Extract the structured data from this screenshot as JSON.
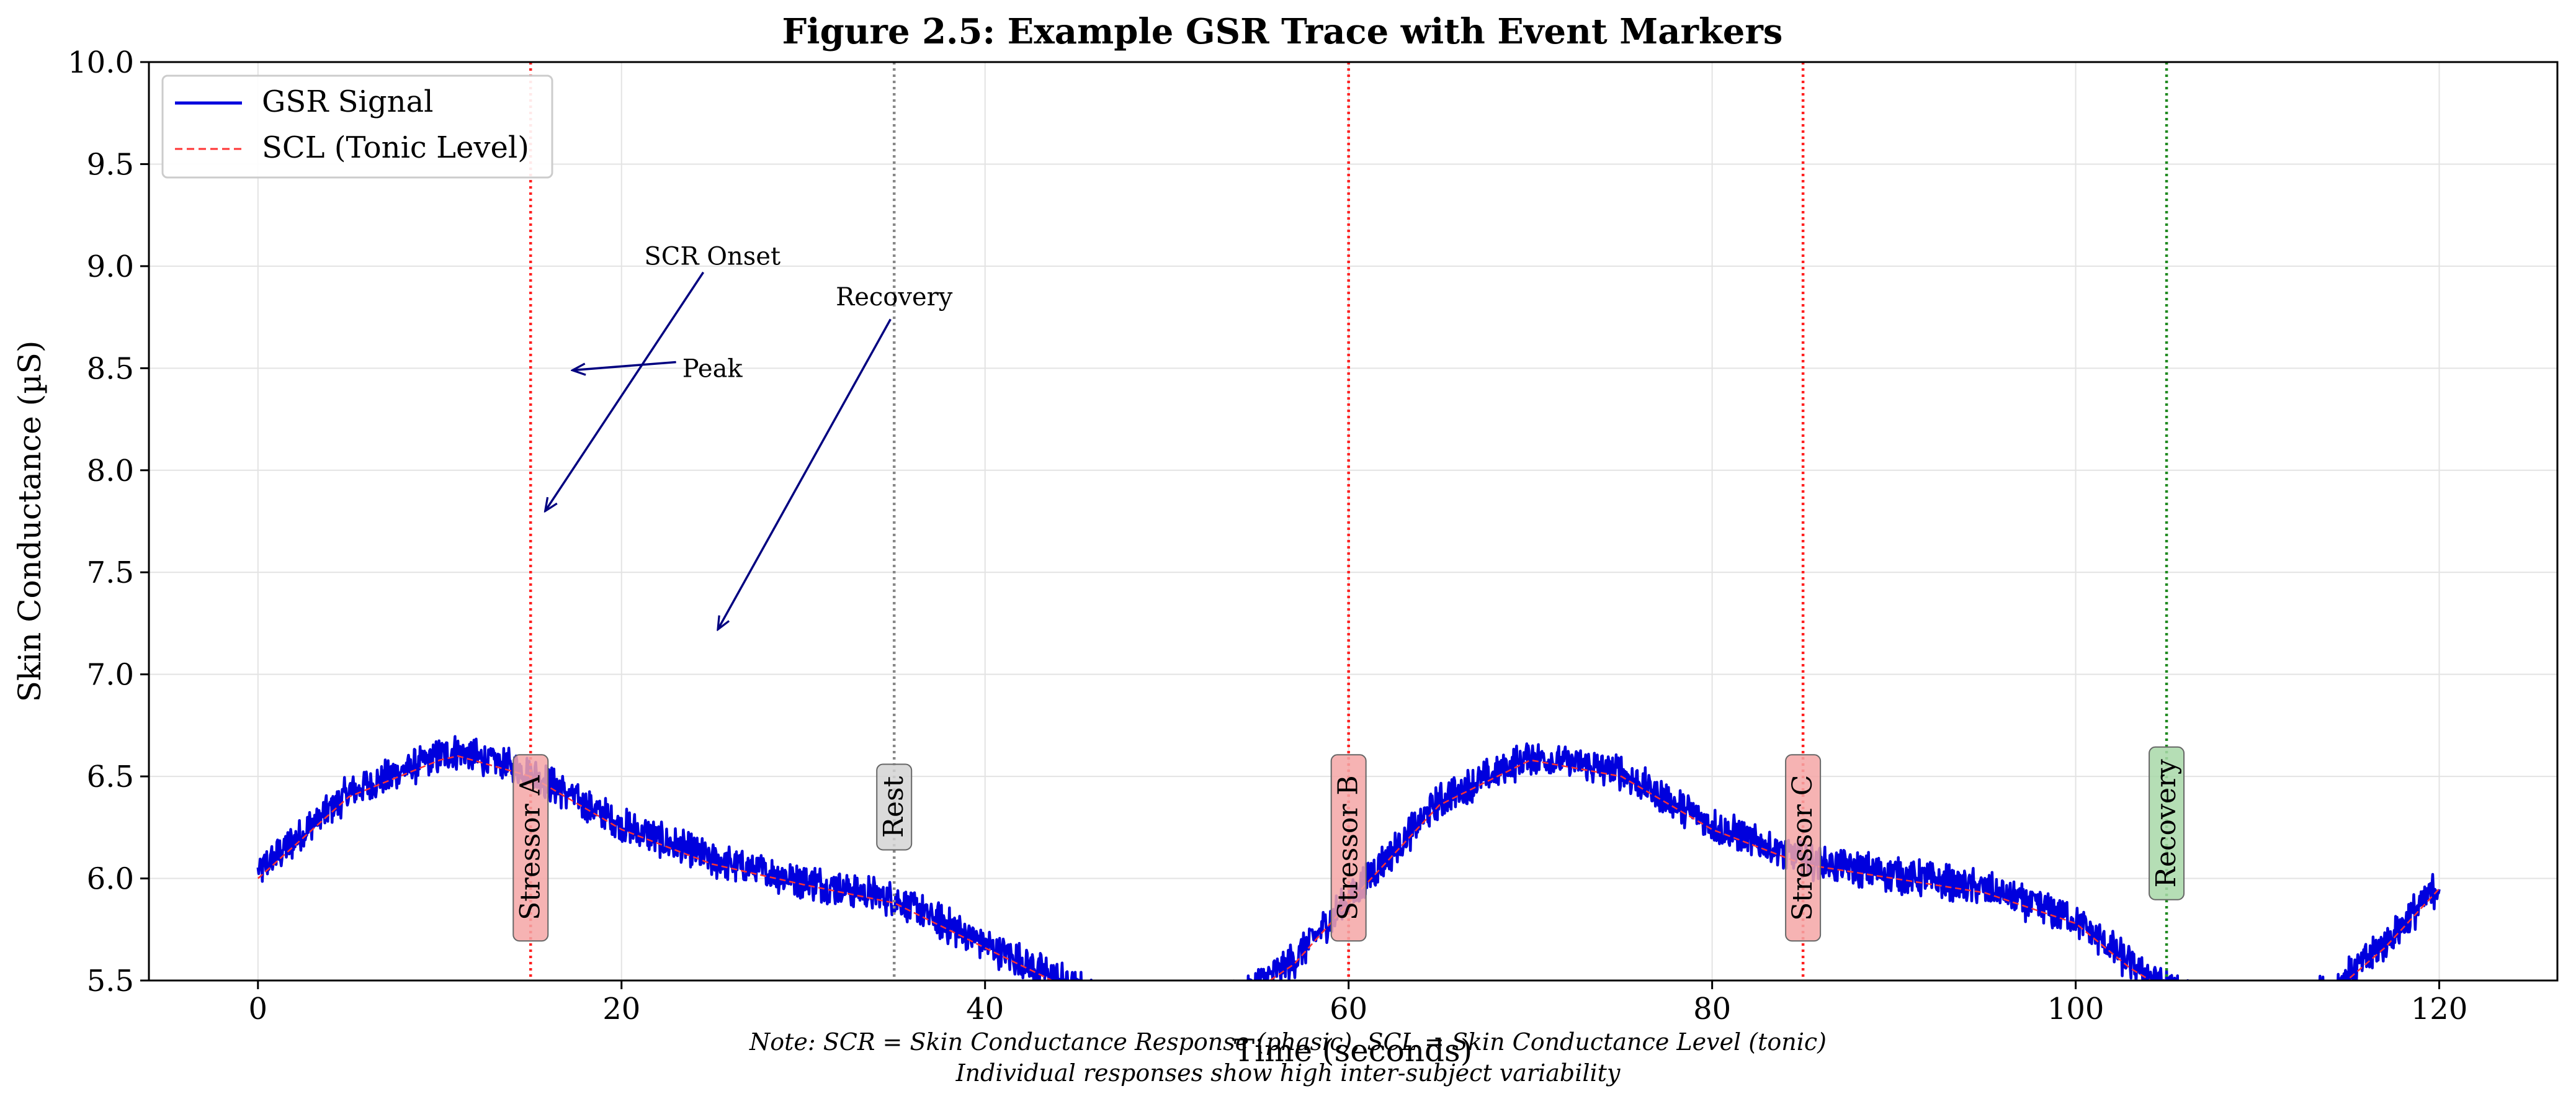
{
  "chart_data": {
    "type": "line",
    "title": "Figure 2.5: Example GSR Trace with Event Markers",
    "xlabel": "Time (seconds)",
    "ylabel": "Skin Conductance (µS)",
    "xlim": [
      -6,
      126.5
    ],
    "ylim": [
      5.5,
      10.0
    ],
    "xticks": [
      0,
      20,
      40,
      60,
      80,
      100,
      120
    ],
    "yticks": [
      5.5,
      6.0,
      6.5,
      7.0,
      7.5,
      8.0,
      8.5,
      9.0,
      9.5,
      10.0
    ],
    "grid": true,
    "legend_position": "top-left",
    "series": [
      {
        "name": "GSR Signal",
        "color": "#0000dd",
        "style": "solid",
        "x": [
          0,
          5,
          10,
          11,
          15,
          20,
          25,
          30,
          35,
          40,
          43,
          46,
          50,
          54,
          57,
          60,
          65,
          70,
          75,
          80,
          85,
          90,
          95,
          100,
          103,
          106,
          110,
          114,
          117,
          120
        ],
        "y": [
          6.03,
          6.42,
          6.6,
          6.62,
          6.52,
          6.26,
          6.09,
          5.99,
          5.9,
          5.68,
          5.55,
          5.42,
          5.34,
          5.42,
          5.6,
          5.9,
          6.38,
          6.6,
          6.52,
          6.26,
          6.09,
          6.02,
          5.95,
          5.8,
          5.58,
          5.42,
          5.34,
          5.45,
          5.68,
          5.97
        ]
      },
      {
        "name": "SCL (Tonic Level)",
        "color": "#ff3333",
        "style": "dashed",
        "x": [
          0,
          5,
          10,
          11,
          15,
          20,
          25,
          30,
          35,
          40,
          43,
          46,
          50,
          54,
          57,
          60,
          65,
          70,
          75,
          80,
          85,
          90,
          95,
          100,
          103,
          106,
          110,
          114,
          117,
          120
        ],
        "y": [
          6.0,
          6.4,
          6.58,
          6.6,
          6.5,
          6.24,
          6.07,
          5.97,
          5.88,
          5.66,
          5.53,
          5.4,
          5.32,
          5.4,
          5.58,
          5.88,
          6.36,
          6.58,
          6.5,
          6.24,
          6.07,
          6.0,
          5.93,
          5.78,
          5.56,
          5.4,
          5.32,
          5.43,
          5.66,
          5.95
        ]
      }
    ],
    "event_markers": [
      {
        "x": 15,
        "label": "Stressor A",
        "color": "#ff2222",
        "box_color": "#f4a6a6",
        "label_y": 6.15
      },
      {
        "x": 35,
        "label": "Rest",
        "color": "#888888",
        "box_color": "#d3d3d3",
        "label_y": 6.35
      },
      {
        "x": 60,
        "label": "Stressor B",
        "color": "#ff2222",
        "box_color": "#f4a6a6",
        "label_y": 6.15
      },
      {
        "x": 85,
        "label": "Stressor C",
        "color": "#ff2222",
        "box_color": "#f4a6a6",
        "label_y": 6.15
      },
      {
        "x": 105,
        "label": "Recovery",
        "color": "#228b22",
        "box_color": "#a8d8a8",
        "label_y": 6.27
      }
    ],
    "annotations": [
      {
        "text": "SCR Onset",
        "text_x": 25,
        "text_y": 9.05,
        "arrow_from": [
          24.5,
          8.97
        ],
        "arrow_to": [
          15.8,
          7.8
        ]
      },
      {
        "text": "Peak",
        "text_x": 25,
        "text_y": 8.5,
        "arrow_from": [
          23.0,
          8.53
        ],
        "arrow_to": [
          17.3,
          8.49
        ]
      },
      {
        "text": "Recovery",
        "text_x": 35,
        "text_y": 8.85,
        "arrow_from": [
          34.8,
          8.74
        ],
        "arrow_to": [
          25.3,
          7.22
        ]
      }
    ],
    "footnote": [
      "Note: SCR = Skin Conductance Response (phasic), SCL = Skin Conductance Level (tonic)",
      "Individual responses show high inter-subject variability"
    ]
  }
}
